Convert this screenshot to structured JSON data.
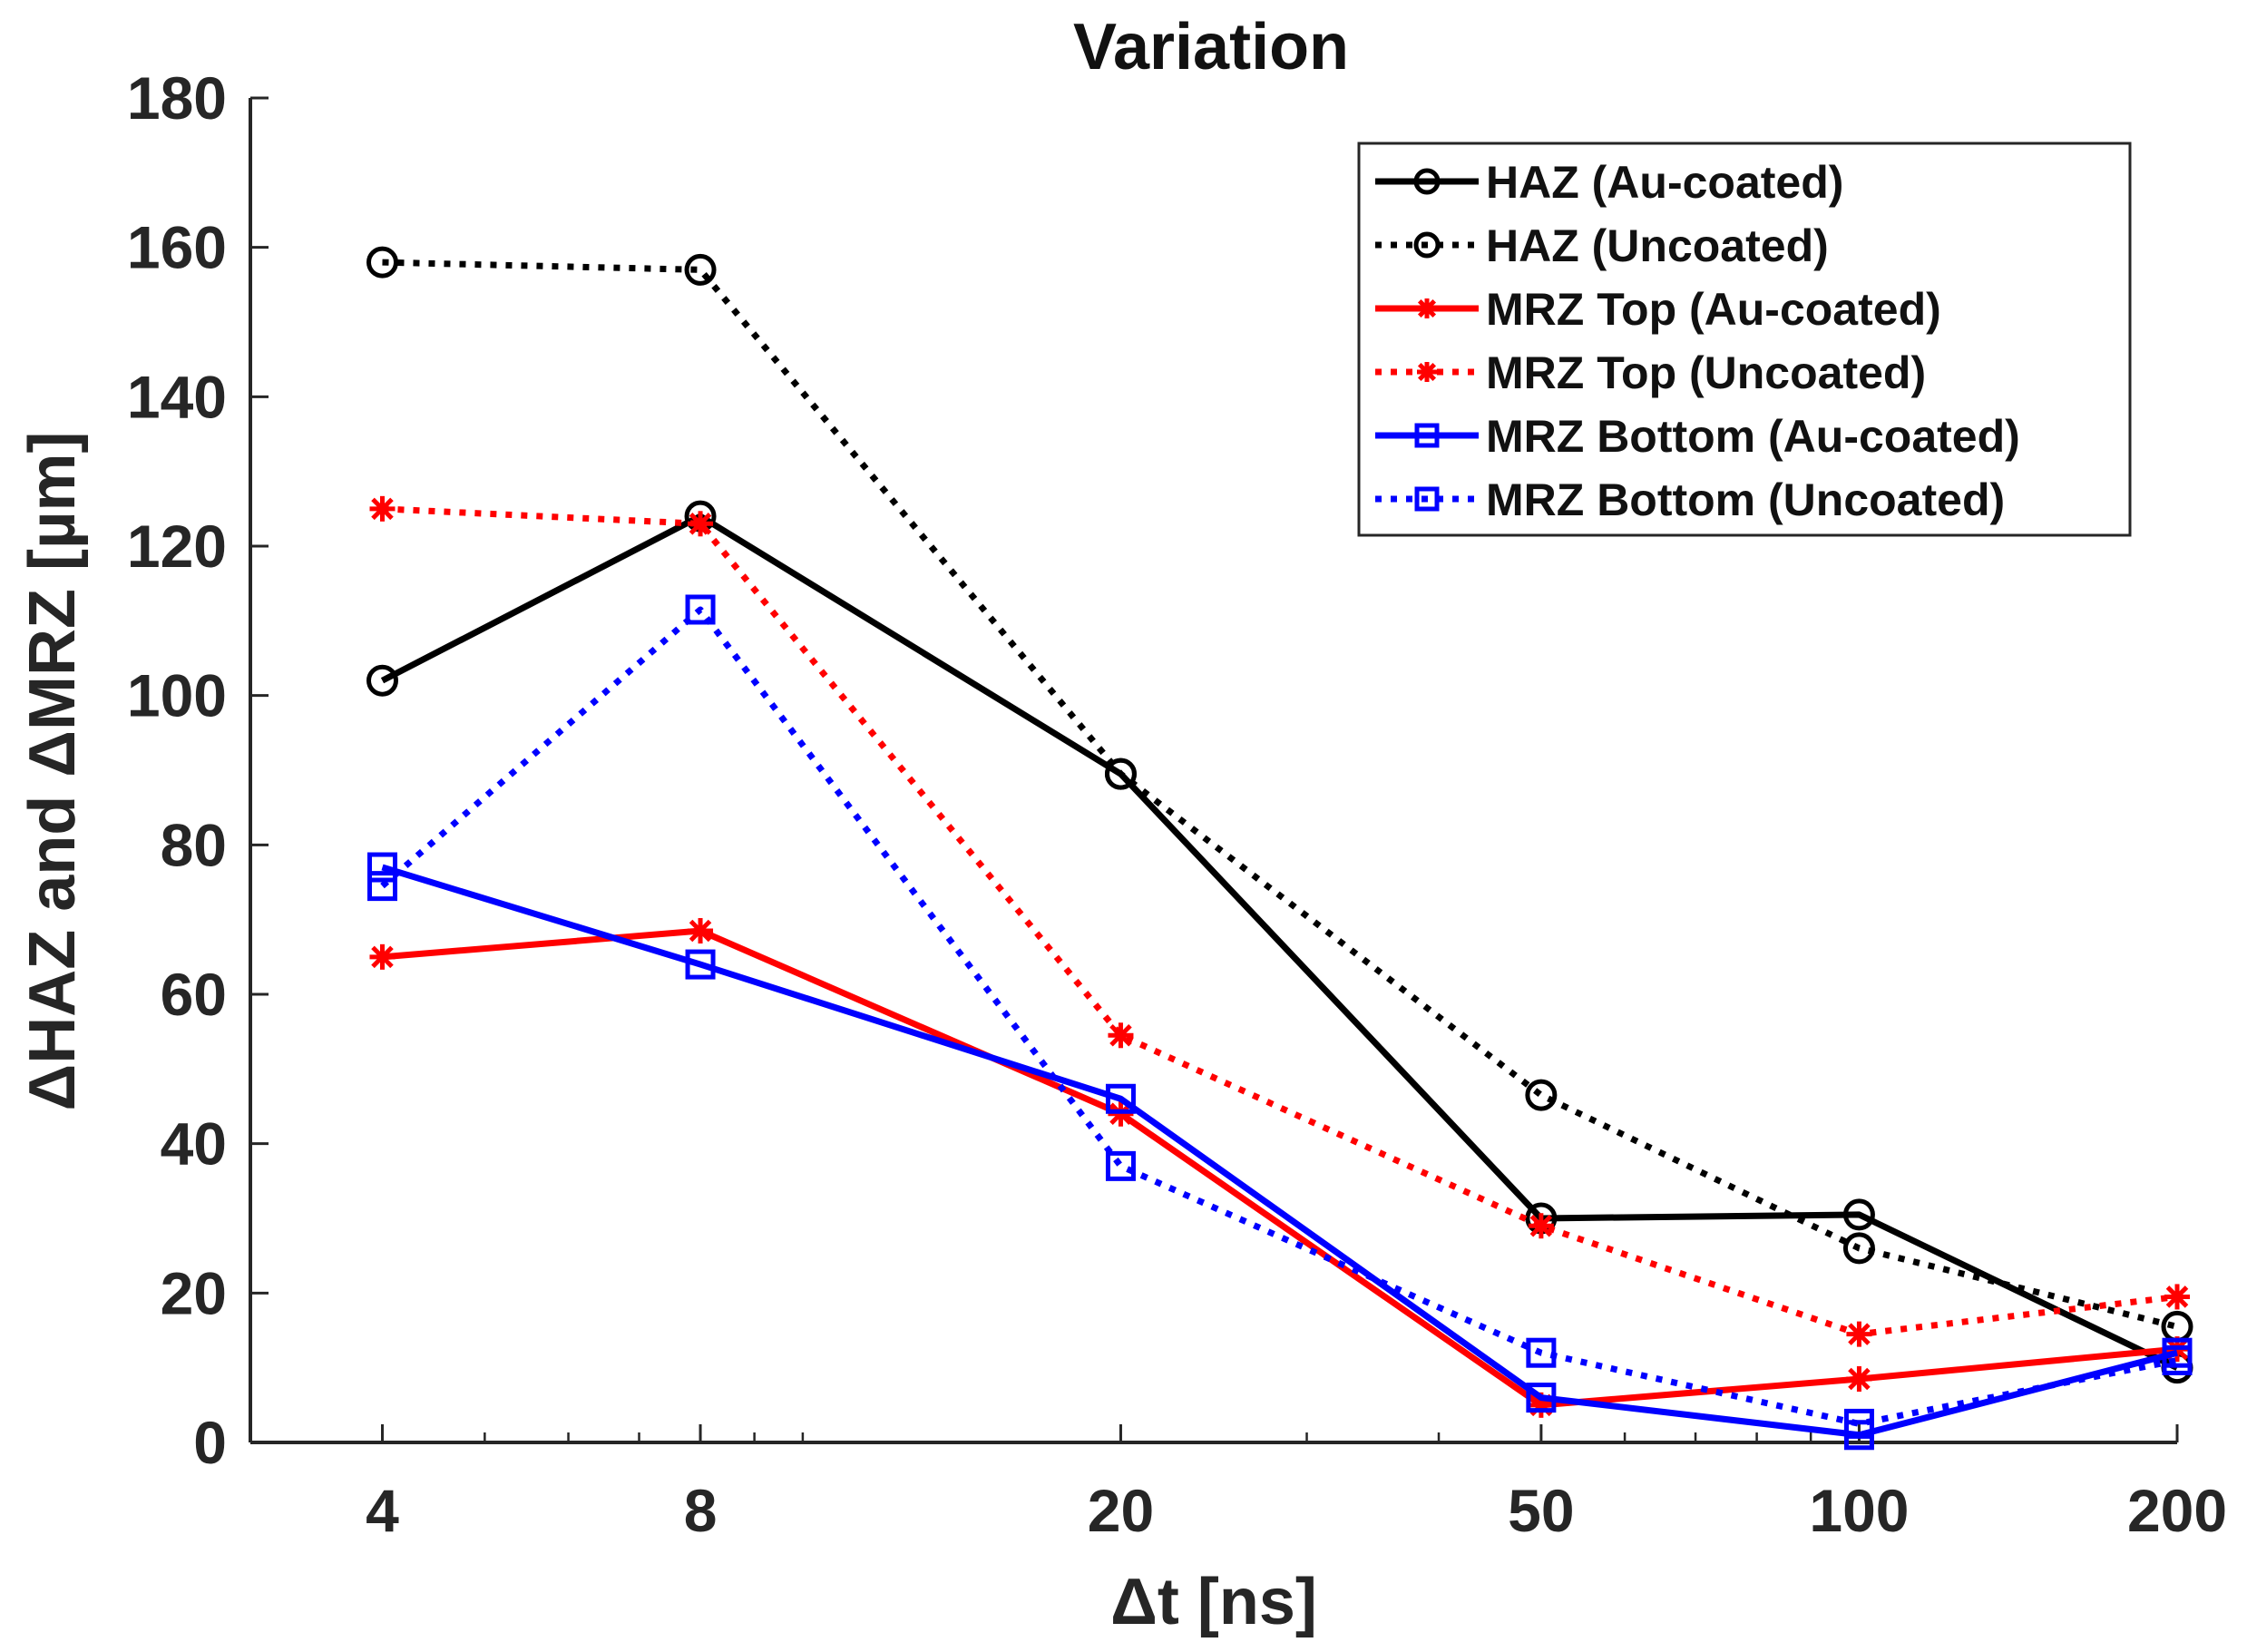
{
  "chart_data": {
    "type": "line",
    "title": "Variation",
    "xlabel": "Δt [ns]",
    "ylabel": "ΔHAZ and ΔMRZ [µm]",
    "xscale": "log",
    "x": [
      4,
      8,
      20,
      50,
      100,
      200
    ],
    "x_tick_labels": [
      "4",
      "8",
      "20",
      "50",
      "100",
      "200"
    ],
    "xlim": [
      3,
      200
    ],
    "ylim": [
      0,
      180
    ],
    "y_ticks": [
      0,
      20,
      40,
      60,
      80,
      100,
      120,
      140,
      160,
      180
    ],
    "grid": false,
    "legend_position": "top-right",
    "series": [
      {
        "name": "HAZ (Au-coated)",
        "color": "#000000",
        "style": "solid",
        "marker": "circle",
        "values": [
          102,
          124,
          89.5,
          30,
          30.5,
          10
        ]
      },
      {
        "name": "HAZ (Uncoated)",
        "color": "#000000",
        "style": "dotted",
        "marker": "circle",
        "values": [
          158,
          157,
          89.5,
          46.5,
          26,
          15.5
        ]
      },
      {
        "name": "MRZ Top (Au-coated)",
        "color": "#ff0000",
        "style": "solid",
        "marker": "asterisk",
        "values": [
          65,
          68.5,
          44,
          5,
          8.5,
          12.5
        ]
      },
      {
        "name": "MRZ Top (Uncoated)",
        "color": "#ff0000",
        "style": "dotted",
        "marker": "asterisk",
        "values": [
          125,
          123,
          54.5,
          29,
          14.5,
          19.5
        ]
      },
      {
        "name": "MRZ Bottom (Au-coated)",
        "color": "#0000ff",
        "style": "solid",
        "marker": "square",
        "values": [
          77,
          64,
          46,
          6,
          1,
          12
        ]
      },
      {
        "name": "MRZ Bottom (Uncoated)",
        "color": "#0000ff",
        "style": "dotted",
        "marker": "square",
        "values": [
          74.5,
          111.5,
          37,
          12,
          2.5,
          11
        ]
      }
    ]
  }
}
